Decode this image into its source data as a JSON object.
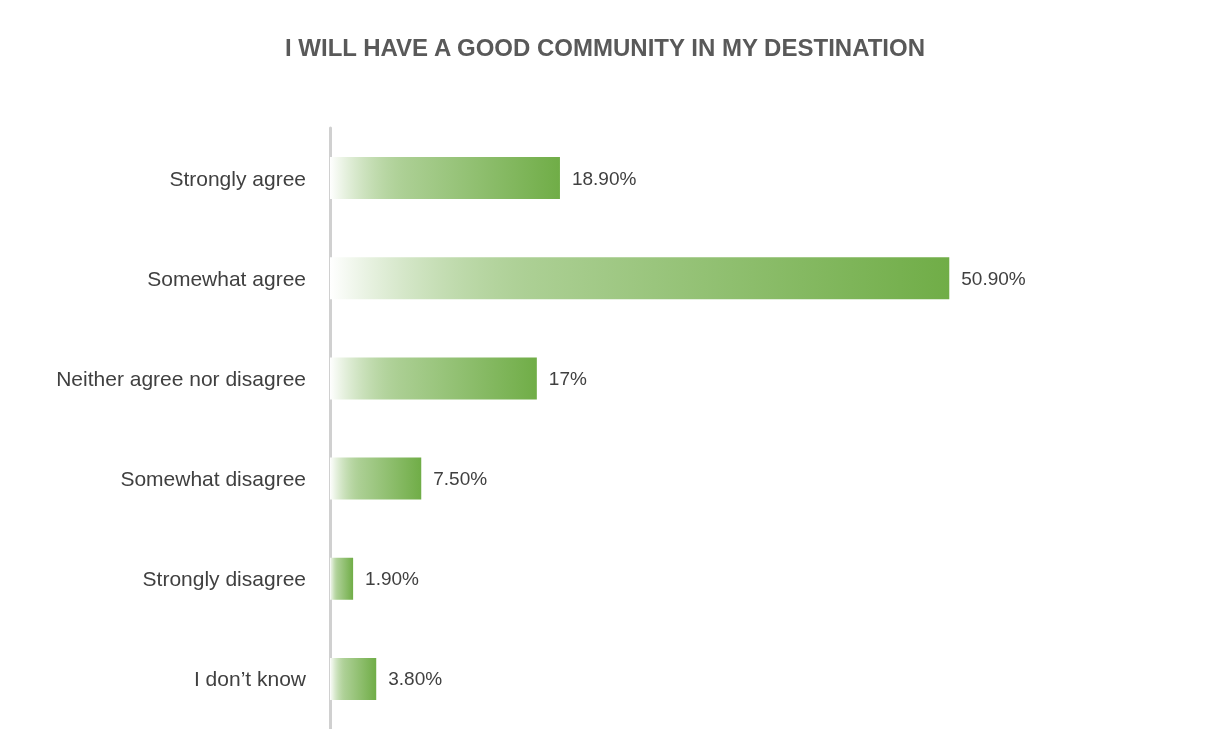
{
  "chart_data": {
    "type": "bar",
    "orientation": "horizontal",
    "title": "I WILL HAVE A GOOD COMMUNITY IN MY DESTINATION",
    "categories": [
      "Strongly agree",
      "Somewhat agree",
      "Neither agree nor disagree",
      "Somewhat disagree",
      "Strongly disagree",
      "I don’t know"
    ],
    "values": [
      18.9,
      50.9,
      17,
      7.5,
      1.9,
      3.8
    ],
    "value_labels": [
      "18.90%",
      "50.90%",
      "17%",
      "7.50%",
      "1.90%",
      "3.80%"
    ],
    "color": "#70ad47"
  }
}
